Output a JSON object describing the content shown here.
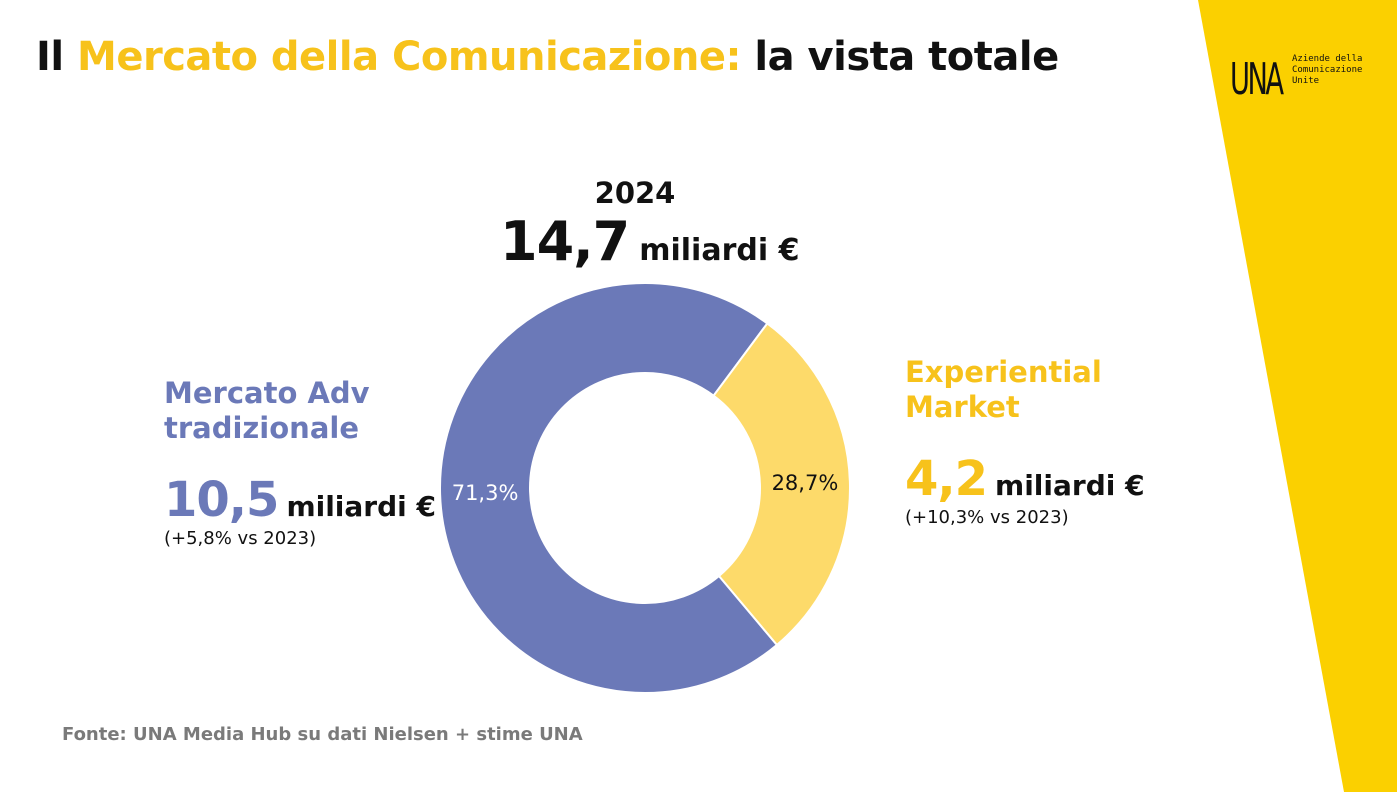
{
  "title": {
    "prefix": "Il ",
    "accent": "Mercato della Comunicazione:",
    "suffix": " la vista totale"
  },
  "logo": {
    "mark": "UNA",
    "lines": [
      "Aziende della",
      "Comunicazione",
      "Unite"
    ]
  },
  "colors": {
    "accent_yellow": "#F7C21B",
    "band_yellow": "#FBD000",
    "adv_blue": "#6B79B8",
    "experiential_yellow": "#FDDA6A"
  },
  "header": {
    "year": "2024",
    "total_value": "14,7",
    "total_unit": "miliardi €"
  },
  "segments": {
    "adv": {
      "name_line1": "Mercato Adv",
      "name_line2": "tradizionale",
      "value": "10,5",
      "unit": "miliardi €",
      "growth": "(+5,8% vs 2023)"
    },
    "experiential": {
      "name_line1": "Experiential",
      "name_line2": "Market",
      "value": "4,2",
      "unit": "miliardi €",
      "growth": "(+10,3% vs 2023)"
    }
  },
  "source": "Fonte: UNA Media Hub su dati Nielsen + stime UNA",
  "chart_data": {
    "type": "pie",
    "variant": "donut",
    "title": "2024",
    "total": 14.7,
    "total_unit": "miliardi €",
    "categories": [
      "Mercato Adv tradizionale",
      "Experiential Market"
    ],
    "values": [
      71.3,
      28.7
    ],
    "value_labels": [
      "71,3%",
      "28,7%"
    ],
    "colors": [
      "#6B79B8",
      "#FDDA6A"
    ]
  }
}
